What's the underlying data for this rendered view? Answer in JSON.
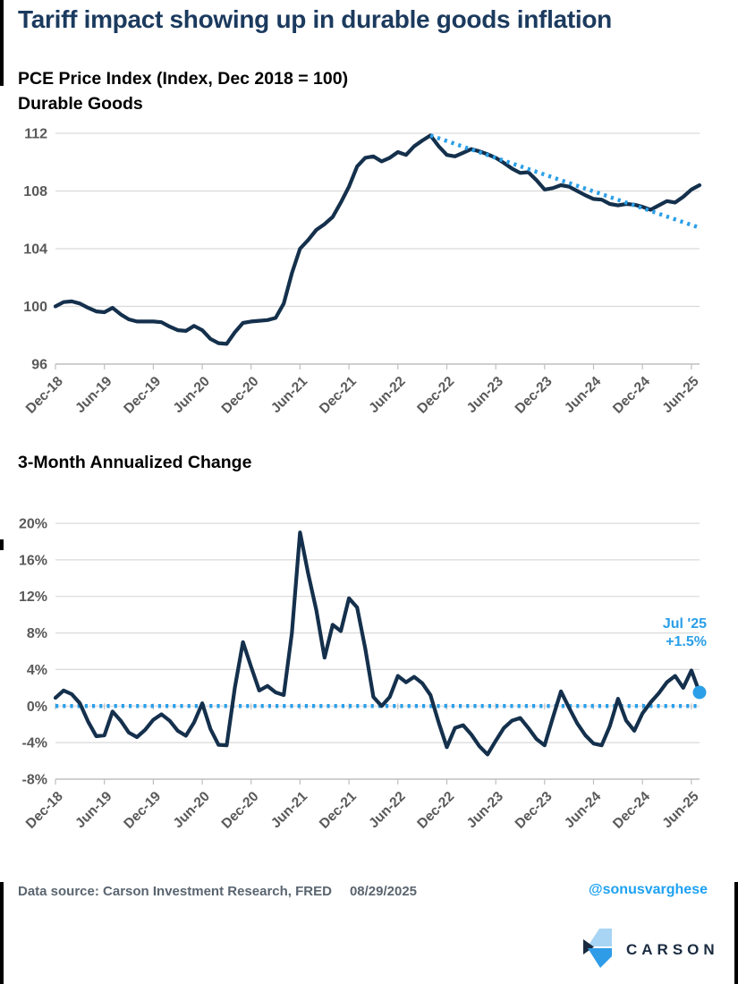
{
  "page": {
    "title": "Tariff impact showing up in durable goods inflation",
    "footer": {
      "source": "Data source: Carson Investment Research, FRED",
      "date": "08/29/2025",
      "handle": "@sonusvarghese",
      "logo_text": "CARSON"
    }
  },
  "colors": {
    "title_navy": "#1B3A5E",
    "navy_line": "#14304C",
    "dotted_blue": "#2B9FE8",
    "annotation_blue": "#2B9FE8",
    "handle_blue": "#1DA1F2",
    "axis_gray": "#595959",
    "gridline": "#D9D9D9",
    "axis_line": "#BFBFBF",
    "logo_navy": "#1A2B40",
    "logo_light_blue": "#A9D5F5",
    "logo_mid_blue": "#2F9CE8"
  },
  "chart_data": [
    {
      "type": "line",
      "title": "PCE Price Index (Index, Dec 2018 = 100)",
      "subtitle": "Durable Goods",
      "x_range": {
        "start": "Dec-18",
        "end": "Jul-25",
        "frequency": "monthly",
        "points": 80
      },
      "x_tick_every": 6,
      "x_tick_labels": [
        "Dec-18",
        "Jun-19",
        "Dec-19",
        "Jun-20",
        "Dec-20",
        "Jun-21",
        "Dec-21",
        "Jun-22",
        "Dec-22",
        "Jun-23",
        "Dec-23",
        "Jun-24",
        "Dec-24",
        "Jun-25"
      ],
      "ylim": [
        96,
        112
      ],
      "ytick_values": [
        112,
        108,
        104,
        100,
        96
      ],
      "ytick_labels": [
        "112",
        "108",
        "104",
        "100",
        "96"
      ],
      "grid": true,
      "series": [
        {
          "name": "PCE Durable Goods Price Index",
          "values": [
            100.0,
            100.3,
            100.35,
            100.2,
            99.9,
            99.65,
            99.6,
            99.9,
            99.45,
            99.1,
            98.95,
            98.95,
            98.95,
            98.9,
            98.6,
            98.35,
            98.3,
            98.65,
            98.35,
            97.75,
            97.45,
            97.4,
            98.2,
            98.85,
            98.95,
            99.0,
            99.05,
            99.2,
            100.2,
            102.3,
            104.0,
            104.6,
            105.3,
            105.7,
            106.2,
            107.2,
            108.3,
            109.7,
            110.3,
            110.4,
            110.05,
            110.3,
            110.7,
            110.5,
            111.1,
            111.5,
            111.85,
            111.1,
            110.5,
            110.4,
            110.65,
            110.9,
            110.75,
            110.55,
            110.3,
            109.95,
            109.55,
            109.25,
            109.3,
            108.75,
            108.1,
            108.2,
            108.4,
            108.3,
            108.0,
            107.7,
            107.45,
            107.4,
            107.1,
            107.0,
            107.1,
            107.05,
            106.9,
            106.7,
            107.0,
            107.3,
            107.2,
            107.6,
            108.1,
            108.4
          ]
        }
      ],
      "trendline": {
        "description": "dotted downtrend from Oct-22 peak to Jul-25",
        "start_index": 46,
        "start_value": 111.85,
        "end_index": 79,
        "end_value": 105.45
      }
    },
    {
      "type": "line",
      "title": "3-Month Annualized Change",
      "x_range": {
        "start": "Dec-18",
        "end": "Jul-25",
        "frequency": "monthly",
        "points": 80
      },
      "x_tick_every": 6,
      "x_tick_labels": [
        "Dec-18",
        "Jun-19",
        "Dec-19",
        "Jun-20",
        "Dec-20",
        "Jun-21",
        "Dec-21",
        "Jun-22",
        "Dec-22",
        "Jun-23",
        "Dec-23",
        "Jun-24",
        "Dec-24",
        "Jun-25"
      ],
      "ylim": [
        -8,
        20
      ],
      "ytick_values": [
        20,
        16,
        12,
        8,
        4,
        0,
        -4,
        -8
      ],
      "ytick_labels": [
        "20%",
        "16%",
        "12%",
        "8%",
        "4%",
        "0%",
        "-4%",
        "-8%"
      ],
      "grid": true,
      "zero_line": true,
      "series": [
        {
          "name": "3-Month Annualized Change",
          "values": [
            0.9,
            1.7,
            1.3,
            0.3,
            -1.7,
            -3.3,
            -3.2,
            -0.6,
            -1.6,
            -2.9,
            -3.4,
            -2.6,
            -1.5,
            -0.9,
            -1.6,
            -2.7,
            -3.25,
            -1.8,
            0.3,
            -2.5,
            -4.25,
            -4.3,
            2.0,
            7.0,
            4.3,
            1.7,
            2.2,
            1.5,
            1.2,
            8.0,
            19.0,
            14.5,
            10.5,
            5.3,
            8.9,
            8.2,
            11.8,
            10.8,
            6.3,
            1.0,
            0.0,
            1.0,
            3.3,
            2.6,
            3.2,
            2.5,
            1.2,
            -1.8,
            -4.5,
            -2.4,
            -2.1,
            -3.1,
            -4.4,
            -5.3,
            -3.8,
            -2.4,
            -1.6,
            -1.3,
            -2.4,
            -3.6,
            -4.3,
            -1.3,
            1.6,
            -0.2,
            -1.9,
            -3.2,
            -4.1,
            -4.3,
            -2.2,
            0.8,
            -1.6,
            -2.7,
            -0.8,
            0.4,
            1.4,
            2.6,
            3.3,
            2.0,
            3.9,
            1.5
          ]
        }
      ],
      "end_marker": true,
      "annotation": {
        "label": "Jul '25",
        "value_label": "+1.5%"
      }
    }
  ]
}
